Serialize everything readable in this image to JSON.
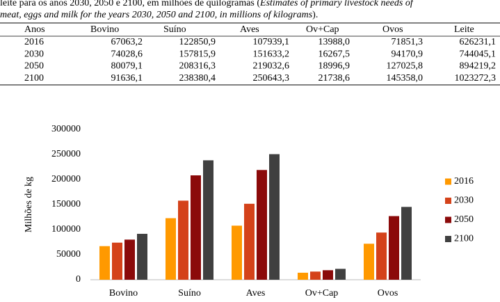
{
  "caption": {
    "line1": "leite para os anos 2030, 2050 e 2100, em milhões de quilogramas (",
    "line1_italic": "Estimates of primary livestock needs of",
    "line2_italic": "meat, eggs and milk for the years 2030, 2050 and 2100, in millions of kilograms",
    "line2_end": ")."
  },
  "table": {
    "header": [
      "Anos",
      "Bovino",
      "Suíno",
      "Aves",
      "Ov+Cap",
      "Ovos",
      "Leite"
    ],
    "rows": [
      [
        "2016",
        "67063,2",
        "122850,9",
        "107939,1",
        "13988,0",
        "71851,3",
        "626231,1"
      ],
      [
        "2030",
        "74028,6",
        "157815,9",
        "151633,2",
        "16267,5",
        "94170,9",
        "744045,1"
      ],
      [
        "2050",
        "80079,1",
        "208316,3",
        "219032,6",
        "18996,9",
        "127025,8",
        "894219,2"
      ],
      [
        "2100",
        "91636,1",
        "238380,4",
        "250643,3",
        "21738,6",
        "145358,0",
        "1023272,3"
      ]
    ]
  },
  "chart_data": {
    "type": "bar",
    "y_label": "Milhões de kg",
    "categories": [
      "Bovino",
      "Suíno",
      "Aves",
      "Ov+Cap",
      "Ovos"
    ],
    "series": [
      {
        "name": "2016",
        "color": "#ff9900",
        "values": [
          67063.2,
          122850.9,
          107939.1,
          13988.0,
          71851.3
        ]
      },
      {
        "name": "2030",
        "color": "#d4421a",
        "values": [
          74028.6,
          157815.9,
          151633.2,
          16267.5,
          94170.9
        ]
      },
      {
        "name": "2050",
        "color": "#8b0a0a",
        "values": [
          80079.1,
          208316.3,
          219032.6,
          18996.9,
          127025.8
        ]
      },
      {
        "name": "2100",
        "color": "#404040",
        "values": [
          91636.1,
          238380.4,
          250643.3,
          21738.6,
          145358.0
        ]
      }
    ],
    "ylim": [
      0,
      300000
    ],
    "yticks": [
      0,
      50000,
      100000,
      150000,
      200000,
      250000,
      300000
    ],
    "grid": false,
    "legend": "right"
  }
}
